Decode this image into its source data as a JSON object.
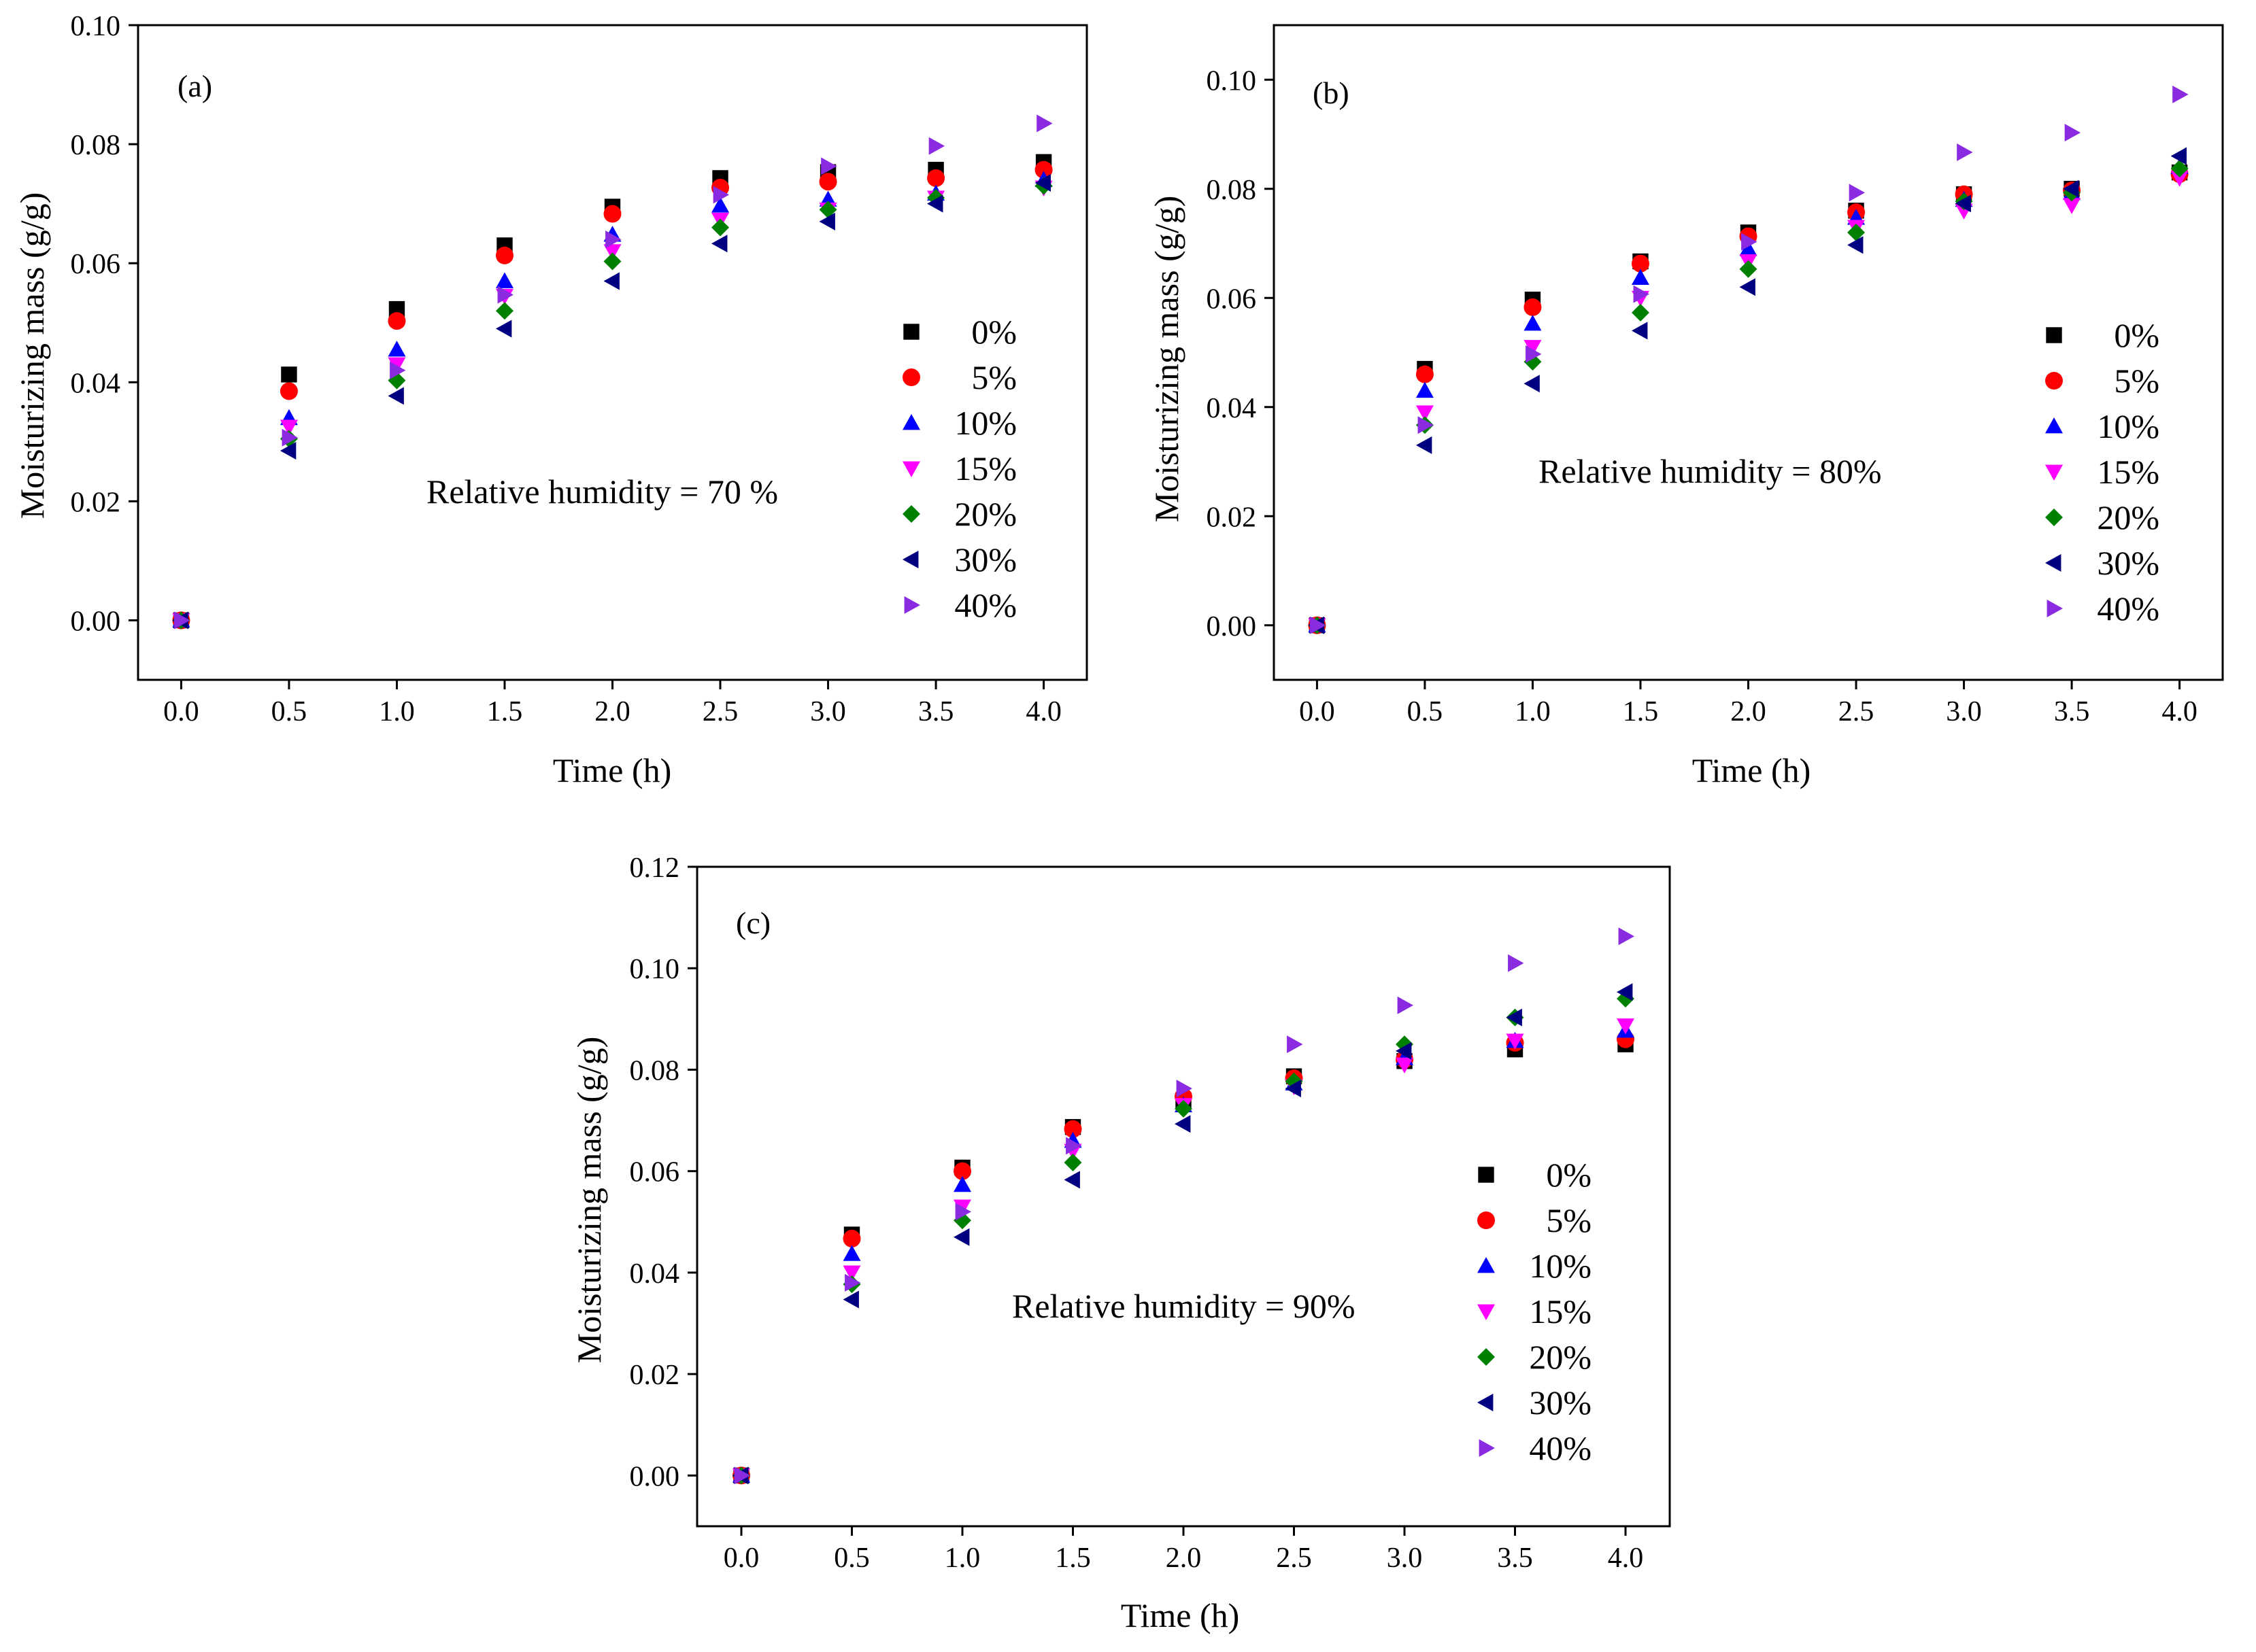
{
  "colors": {
    "0%": "#000000",
    "5%": "#ff0000",
    "10%": "#0000ff",
    "15%": "#ff00ff",
    "20%": "#008000",
    "30%": "#000080",
    "40%": "#8a2be2"
  },
  "markers": {
    "0%": "square",
    "5%": "circle",
    "10%": "triangle-up",
    "15%": "triangle-down",
    "20%": "diamond",
    "30%": "triangle-left",
    "40%": "triangle-right"
  },
  "chart_data": [
    {
      "type": "scatter",
      "panel_label": "(a)",
      "annotation": "Relative humidity = 70 %",
      "xlabel": "Time (h)",
      "ylabel": "Moisturizing mass (g/g)",
      "xlim": [
        -0.2,
        4.2
      ],
      "ylim": [
        -0.01,
        0.1
      ],
      "xticks": [
        "0.0",
        "0.5",
        "1.0",
        "1.5",
        "2.0",
        "2.5",
        "3.0",
        "3.5",
        "4.0"
      ],
      "yticks": [
        "0.00",
        "0.02",
        "0.04",
        "0.06",
        "0.08",
        "0.10"
      ],
      "legend_position": "right",
      "x": [
        0,
        0.5,
        1.0,
        1.5,
        2.0,
        2.5,
        3.0,
        3.5,
        4.0
      ],
      "series": [
        {
          "name": "0%",
          "values": [
            0,
            0.0413,
            0.0523,
            0.063,
            0.0695,
            0.0743,
            0.0753,
            0.0757,
            0.077
          ]
        },
        {
          "name": "5%",
          "values": [
            0,
            0.0385,
            0.0503,
            0.0613,
            0.0683,
            0.0727,
            0.0737,
            0.0743,
            0.0757
          ]
        },
        {
          "name": "10%",
          "values": [
            0,
            0.034,
            0.0455,
            0.057,
            0.0648,
            0.0697,
            0.0707,
            0.0717,
            0.074
          ]
        },
        {
          "name": "15%",
          "values": [
            0,
            0.0325,
            0.043,
            0.0545,
            0.062,
            0.0673,
            0.069,
            0.071,
            0.0727
          ]
        },
        {
          "name": "20%",
          "values": [
            0,
            0.0305,
            0.0403,
            0.052,
            0.0603,
            0.066,
            0.069,
            0.071,
            0.073
          ]
        },
        {
          "name": "30%",
          "values": [
            0,
            0.0285,
            0.0377,
            0.049,
            0.057,
            0.0633,
            0.067,
            0.07,
            0.0735
          ]
        },
        {
          "name": "40%",
          "values": [
            0,
            0.0307,
            0.042,
            0.0547,
            0.064,
            0.0715,
            0.0763,
            0.0797,
            0.0835
          ]
        }
      ]
    },
    {
      "type": "scatter",
      "panel_label": "(b)",
      "annotation": "Relative humidity = 80%",
      "xlabel": "Time (h)",
      "ylabel": "Moisturizing mass (g/g)",
      "xlim": [
        -0.2,
        4.2
      ],
      "ylim": [
        -0.01,
        0.11
      ],
      "xticks": [
        "0.0",
        "0.5",
        "1.0",
        "1.5",
        "2.0",
        "2.5",
        "3.0",
        "3.5",
        "4.0"
      ],
      "yticks": [
        "0.00",
        "0.02",
        "0.04",
        "0.06",
        "0.08",
        "0.10"
      ],
      "legend_position": "right",
      "x": [
        0,
        0.5,
        1.0,
        1.5,
        2.0,
        2.5,
        3.0,
        3.5,
        4.0
      ],
      "series": [
        {
          "name": "0%",
          "values": [
            0,
            0.047,
            0.0597,
            0.0667,
            0.072,
            0.076,
            0.079,
            0.08,
            0.083
          ]
        },
        {
          "name": "5%",
          "values": [
            0,
            0.046,
            0.0583,
            0.0663,
            0.0713,
            0.0757,
            0.079,
            0.0797,
            0.0827
          ]
        },
        {
          "name": "10%",
          "values": [
            0,
            0.043,
            0.0553,
            0.0637,
            0.069,
            0.0747,
            0.078,
            0.0793,
            0.084
          ]
        },
        {
          "name": "15%",
          "values": [
            0,
            0.039,
            0.051,
            0.06,
            0.0667,
            0.073,
            0.076,
            0.077,
            0.082
          ]
        },
        {
          "name": "20%",
          "values": [
            0,
            0.0367,
            0.0483,
            0.0573,
            0.0653,
            0.072,
            0.0777,
            0.0793,
            0.0837
          ]
        },
        {
          "name": "30%",
          "values": [
            0,
            0.033,
            0.0443,
            0.054,
            0.062,
            0.0697,
            0.0773,
            0.08,
            0.086
          ]
        },
        {
          "name": "40%",
          "values": [
            0,
            0.0367,
            0.0497,
            0.0607,
            0.0703,
            0.0793,
            0.0867,
            0.0903,
            0.0973
          ]
        }
      ]
    },
    {
      "type": "scatter",
      "panel_label": "(c)",
      "annotation": "Relative humidity = 90%",
      "xlabel": "Time (h)",
      "ylabel": "Moisturizing mass (g/g)",
      "xlim": [
        -0.2,
        4.2
      ],
      "ylim": [
        -0.01,
        0.12
      ],
      "xticks": [
        "0.0",
        "0.5",
        "1.0",
        "1.5",
        "2.0",
        "2.5",
        "3.0",
        "3.5",
        "4.0"
      ],
      "yticks": [
        "0.00",
        "0.02",
        "0.04",
        "0.06",
        "0.08",
        "0.10",
        "0.12"
      ],
      "legend_position": "right",
      "x": [
        0,
        0.5,
        1.0,
        1.5,
        2.0,
        2.5,
        3.0,
        3.5,
        4.0
      ],
      "series": [
        {
          "name": "0%",
          "values": [
            0,
            0.0475,
            0.0607,
            0.0687,
            0.074,
            0.0787,
            0.0817,
            0.084,
            0.085
          ]
        },
        {
          "name": "5%",
          "values": [
            0,
            0.0467,
            0.06,
            0.0683,
            0.0747,
            0.0783,
            0.082,
            0.0853,
            0.086
          ]
        },
        {
          "name": "10%",
          "values": [
            0,
            0.0437,
            0.0573,
            0.066,
            0.073,
            0.0773,
            0.0823,
            0.0857,
            0.0877
          ]
        },
        {
          "name": "15%",
          "values": [
            0,
            0.04,
            0.053,
            0.064,
            0.073,
            0.0767,
            0.081,
            0.0857,
            0.0887
          ]
        },
        {
          "name": "20%",
          "values": [
            0,
            0.0377,
            0.0503,
            0.0617,
            0.0723,
            0.0777,
            0.085,
            0.0903,
            0.094
          ]
        },
        {
          "name": "30%",
          "values": [
            0,
            0.0347,
            0.047,
            0.0583,
            0.0693,
            0.0763,
            0.0837,
            0.0903,
            0.0953
          ]
        },
        {
          "name": "40%",
          "values": [
            0,
            0.038,
            0.052,
            0.065,
            0.0763,
            0.085,
            0.0927,
            0.101,
            0.1063
          ]
        }
      ]
    }
  ]
}
